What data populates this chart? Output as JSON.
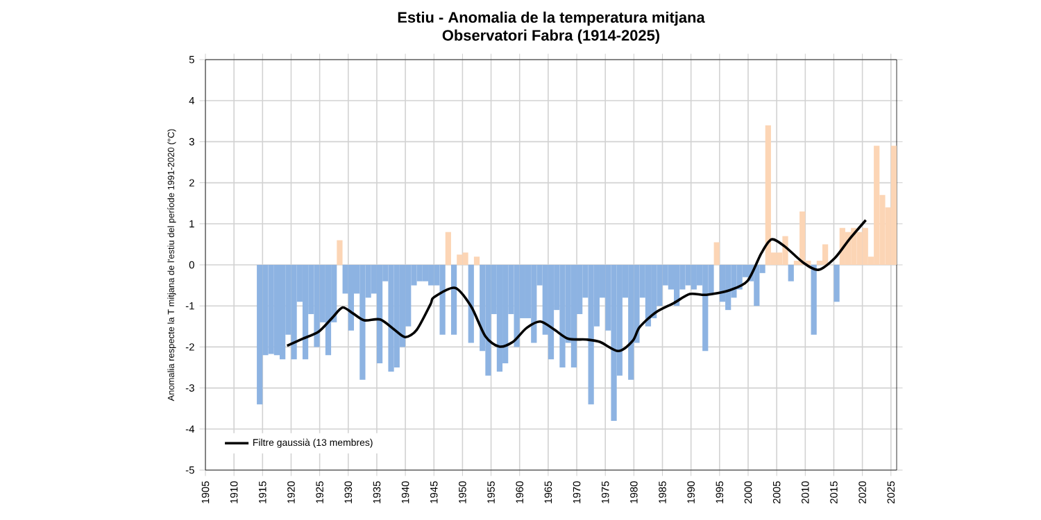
{
  "chart_data": {
    "type": "bar",
    "title": "Estiu - Anomalia de la temperatura mitjana",
    "subtitle": "Observatori Fabra (1914-2025)",
    "ylabel": "Anomalia respecte la T mitjana de l'estiu del període 1991-2020 (°C)",
    "xlim": [
      1905,
      2026
    ],
    "xticks": [
      1905,
      1910,
      1915,
      1920,
      1925,
      1930,
      1935,
      1940,
      1945,
      1950,
      1955,
      1960,
      1965,
      1970,
      1975,
      1980,
      1985,
      1990,
      1995,
      2000,
      2005,
      2010,
      2015,
      2020,
      2025
    ],
    "ylim": [
      -5,
      5
    ],
    "yticks": [
      -5,
      -4,
      -3,
      -2,
      -1,
      0,
      1,
      2,
      3,
      4,
      5
    ],
    "grid": true,
    "legend": "bottom left",
    "series": [
      {
        "x": [
          1914,
          1915,
          1916,
          1917,
          1918,
          1919,
          1920,
          1921,
          1922,
          1923,
          1924,
          1925,
          1926,
          1927,
          1928,
          1929,
          1930,
          1931,
          1932,
          1933,
          1934,
          1935,
          1936,
          1937,
          1938,
          1939,
          1940,
          1941,
          1942,
          1943,
          1944,
          1945,
          1946,
          1947,
          1948,
          1949,
          1950,
          1951,
          1952,
          1953,
          1954,
          1955,
          1956,
          1957,
          1958,
          1959,
          1960,
          1961,
          1962,
          1963,
          1964,
          1965,
          1966,
          1967,
          1968,
          1969,
          1970,
          1971,
          1972,
          1973,
          1974,
          1975,
          1976,
          1977,
          1978,
          1979,
          1980,
          1981,
          1982,
          1983,
          1984,
          1985,
          1986,
          1987,
          1988,
          1989,
          1990,
          1991,
          1992,
          1993,
          1994,
          1995,
          1996,
          1997,
          1998,
          1999,
          2000,
          2001,
          2002,
          2003,
          2004,
          2005,
          2006,
          2007,
          2008,
          2009,
          2010,
          2011,
          2012,
          2013,
          2014,
          2015,
          2016,
          2017,
          2018,
          2019,
          2020,
          2021,
          2022,
          2023,
          2024,
          2025
        ],
        "values": [
          -3.4,
          -2.2,
          -2.17,
          -2.2,
          -2.3,
          -1.7,
          -2.3,
          -0.9,
          -2.3,
          -1.2,
          -2.0,
          -1.4,
          -2.2,
          -1.4,
          0.6,
          -0.7,
          -1.6,
          -0.7,
          -2.8,
          -0.8,
          -0.7,
          -2.4,
          -0.4,
          -2.6,
          -2.5,
          -2.0,
          -1.5,
          -0.5,
          -0.4,
          -0.4,
          -0.5,
          -0.5,
          -1.7,
          0.8,
          -1.7,
          0.25,
          0.3,
          -1.9,
          0.2,
          -2.1,
          -2.7,
          -1.2,
          -2.6,
          -2.4,
          -1.2,
          -2.0,
          -1.3,
          -1.3,
          -1.9,
          -0.5,
          -1.7,
          -2.3,
          -1.1,
          -2.5,
          -1.9,
          -2.5,
          -1.2,
          -0.8,
          -3.4,
          -1.5,
          -0.8,
          -1.6,
          -3.8,
          -2.7,
          -0.8,
          -2.8,
          -1.9,
          -0.8,
          -1.5,
          -1.3,
          -1.0,
          -0.5,
          -0.6,
          -1.0,
          -0.6,
          -0.5,
          -0.6,
          -0.5,
          -2.1,
          -0.7,
          0.55,
          -0.9,
          -1.1,
          -0.8,
          -0.6,
          -0.3,
          -0.4,
          -1.0,
          -0.2,
          3.4,
          0.3,
          0.3,
          0.7,
          -0.4,
          0.1,
          1.3,
          0.1,
          -1.7,
          0.1,
          0.5,
          null,
          -0.9,
          0.9,
          0.8,
          0.9,
          0.8,
          0.9,
          0.2,
          2.9,
          1.7,
          1.4,
          2.9
        ],
        "colors": [
          "#8db3e2",
          "#8db3e2",
          "#8db3e2",
          "#8db3e2",
          "#8db3e2",
          "#8db3e2",
          "#8db3e2",
          "#8db3e2",
          "#8db3e2",
          "#8db3e2",
          "#8db3e2",
          "#8db3e2",
          "#8db3e2",
          "#8db3e2",
          "#fcd5b5",
          "#8db3e2",
          "#8db3e2",
          "#8db3e2",
          "#8db3e2",
          "#8db3e2",
          "#8db3e2",
          "#8db3e2",
          "#8db3e2",
          "#8db3e2",
          "#8db3e2",
          "#8db3e2",
          "#8db3e2",
          "#8db3e2",
          "#8db3e2",
          "#8db3e2",
          "#8db3e2",
          "#8db3e2",
          "#8db3e2",
          "#fcd5b5",
          "#8db3e2",
          "#fcd5b5",
          "#fcd5b5",
          "#8db3e2",
          "#fcd5b5",
          "#8db3e2",
          "#8db3e2",
          "#8db3e2",
          "#8db3e2",
          "#8db3e2",
          "#8db3e2",
          "#8db3e2",
          "#8db3e2",
          "#8db3e2",
          "#8db3e2",
          "#8db3e2",
          "#8db3e2",
          "#8db3e2",
          "#8db3e2",
          "#8db3e2",
          "#8db3e2",
          "#8db3e2",
          "#8db3e2",
          "#8db3e2",
          "#8db3e2",
          "#8db3e2",
          "#8db3e2",
          "#8db3e2",
          "#8db3e2",
          "#8db3e2",
          "#8db3e2",
          "#8db3e2",
          "#8db3e2",
          "#8db3e2",
          "#8db3e2",
          "#8db3e2",
          "#8db3e2",
          "#8db3e2",
          "#8db3e2",
          "#8db3e2",
          "#8db3e2",
          "#8db3e2",
          "#8db3e2",
          "#8db3e2",
          "#8db3e2",
          "#8db3e2",
          "#fcd5b5",
          "#8db3e2",
          "#8db3e2",
          "#8db3e2",
          "#8db3e2",
          "#8db3e2",
          "#8db3e2",
          "#8db3e2",
          "#8db3e2",
          "#fcd5b5",
          "#fcd5b5",
          "#fcd5b5",
          "#fcd5b5",
          "#8db3e2",
          "#fcd5b5",
          "#fcd5b5",
          "#fcd5b5",
          "#8db3e2",
          "#fcd5b5",
          "#fcd5b5",
          "#fcd5b5",
          "#8db3e2",
          "#fcd5b5",
          "#fcd5b5",
          "#fcd5b5",
          "#fcd5b5",
          "#fcd5b5",
          "#fcd5b5",
          "#fcd5b5",
          "#fcd5b5",
          "#fcd5b5",
          "#fcd5b5"
        ]
      },
      {
        "type": "line",
        "name": "Filtre gaussià (13 membres)",
        "color": "#000000",
        "marker": "none",
        "line_style": "solid",
        "x": [
          1919.3,
          1922,
          1924.8,
          1927.2,
          1929,
          1930.8,
          1932.8,
          1935.6,
          1938,
          1940,
          1942,
          1944.4,
          1945,
          1948.7,
          1951.5,
          1954,
          1956.4,
          1958.8,
          1961.2,
          1963.6,
          1966,
          1968.5,
          1971.7,
          1974.1,
          1977.3,
          1979.8,
          1981,
          1983.8,
          1987,
          1989.8,
          1992.7,
          1996.7,
          1999.9,
          2002.3,
          2004.1,
          2006.4,
          2009.6,
          2012.3,
          2015.2,
          2017.7,
          2020.6
        ],
        "values": [
          -1.97,
          -1.8,
          -1.63,
          -1.29,
          -1.04,
          -1.18,
          -1.35,
          -1.33,
          -1.57,
          -1.76,
          -1.58,
          -0.96,
          -0.79,
          -0.56,
          -1.01,
          -1.74,
          -1.99,
          -1.88,
          -1.54,
          -1.38,
          -1.57,
          -1.8,
          -1.82,
          -1.88,
          -2.1,
          -1.85,
          -1.52,
          -1.16,
          -0.93,
          -0.71,
          -0.73,
          -0.62,
          -0.39,
          0.28,
          0.62,
          0.45,
          0.06,
          -0.12,
          0.17,
          0.62,
          1.09
        ]
      }
    ]
  }
}
